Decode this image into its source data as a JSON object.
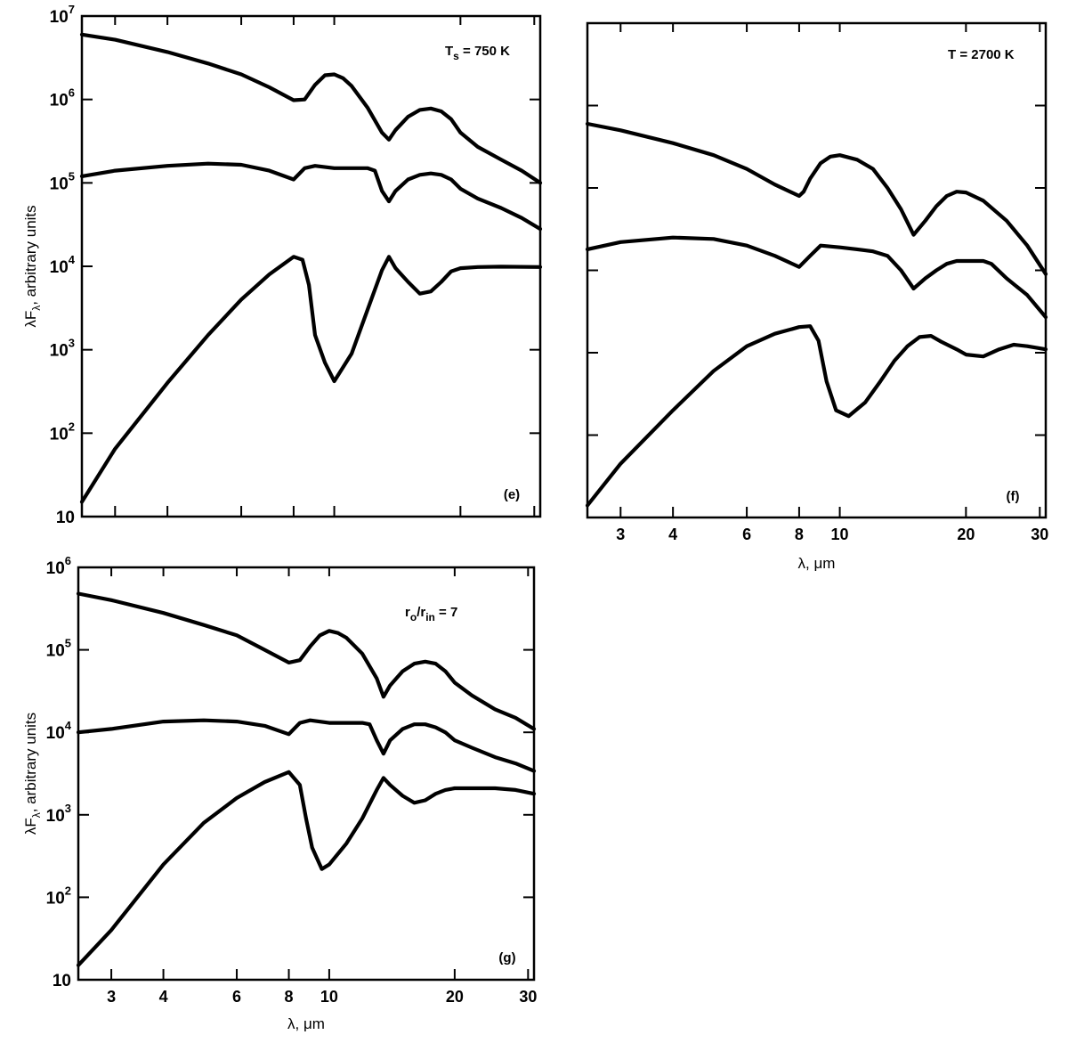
{
  "chart_data": [
    {
      "type": "line",
      "panel": "(e)",
      "annotation": {
        "main": "T",
        "sub": "s",
        "rest": " = 750 K"
      },
      "ylabel": {
        "pre": "λF",
        "sub": "λ",
        "post": ", arbitrary units"
      },
      "xlabel": "",
      "xscale": "log",
      "yscale": "log",
      "xlim": [
        2.5,
        31
      ],
      "ylim": [
        10,
        10000000
      ],
      "yticks": [
        {
          "v": 10,
          "base": "10",
          "exp": ""
        },
        {
          "v": 100,
          "base": "10",
          "exp": "2"
        },
        {
          "v": 1000,
          "base": "10",
          "exp": "3"
        },
        {
          "v": 10000,
          "base": "10",
          "exp": "4"
        },
        {
          "v": 100000,
          "base": "10",
          "exp": "5"
        },
        {
          "v": 1000000,
          "base": "10",
          "exp": "6"
        },
        {
          "v": 10000000,
          "base": "10",
          "exp": "7"
        }
      ],
      "xticks": [
        {
          "v": 3,
          "label": ""
        },
        {
          "v": 4,
          "label": ""
        },
        {
          "v": 6,
          "label": ""
        },
        {
          "v": 8,
          "label": ""
        },
        {
          "v": 10,
          "label": ""
        },
        {
          "v": 20,
          "label": ""
        },
        {
          "v": 30,
          "label": ""
        }
      ],
      "series": [
        {
          "x": [
            2.5,
            3,
            4,
            5,
            6,
            7,
            8,
            8.5,
            9,
            9.5,
            10,
            10.5,
            11,
            12,
            13,
            13.5,
            14,
            15,
            16,
            17,
            18,
            19,
            20,
            22,
            25,
            28,
            31
          ],
          "y": [
            6000000,
            5200000,
            3700000,
            2700000,
            2000000,
            1400000,
            980000,
            1000000,
            1500000,
            1950000,
            2000000,
            1800000,
            1450000,
            800000,
            400000,
            330000,
            430000,
            620000,
            750000,
            780000,
            720000,
            580000,
            400000,
            270000,
            190000,
            140000,
            100000
          ]
        },
        {
          "x": [
            2.5,
            3,
            4,
            5,
            6,
            7,
            8,
            8.5,
            9,
            10,
            11,
            12,
            12.5,
            13,
            13.5,
            14,
            15,
            16,
            17,
            18,
            19,
            20,
            22,
            25,
            28,
            31
          ],
          "y": [
            120000,
            140000,
            160000,
            170000,
            165000,
            140000,
            110000,
            150000,
            160000,
            150000,
            150000,
            150000,
            140000,
            80000,
            60000,
            80000,
            110000,
            125000,
            130000,
            125000,
            110000,
            85000,
            65000,
            50000,
            38000,
            28000
          ]
        },
        {
          "x": [
            2.5,
            3,
            4,
            5,
            6,
            7,
            8,
            8.4,
            8.7,
            9,
            9.5,
            10,
            11,
            12,
            13,
            13.5,
            14,
            15,
            16,
            17,
            18,
            19,
            20,
            22,
            25,
            31
          ],
          "y": [
            15,
            65,
            400,
            1500,
            4000,
            8000,
            13000,
            12000,
            6000,
            1500,
            700,
            420,
            900,
            3000,
            9000,
            13000,
            9500,
            6500,
            4700,
            5000,
            6500,
            8700,
            9500,
            9800,
            9900,
            9800
          ]
        }
      ]
    },
    {
      "type": "line",
      "panel": "(f)",
      "annotation": {
        "main": "T",
        "sub": "",
        "rest": " = 2700 K"
      },
      "xlabel": "λ, μm",
      "xscale": "log",
      "yscale": "log",
      "xlim": [
        2.5,
        31
      ],
      "ylim": [
        10,
        10000000
      ],
      "yticks": [
        {
          "v": 10,
          "base": "",
          "exp": ""
        },
        {
          "v": 100,
          "base": "",
          "exp": ""
        },
        {
          "v": 1000,
          "base": "",
          "exp": ""
        },
        {
          "v": 10000,
          "base": "",
          "exp": ""
        },
        {
          "v": 100000,
          "base": "",
          "exp": ""
        },
        {
          "v": 1000000,
          "base": "",
          "exp": ""
        },
        {
          "v": 10000000,
          "base": "",
          "exp": ""
        }
      ],
      "xticks": [
        {
          "v": 3,
          "label": "3"
        },
        {
          "v": 4,
          "label": "4"
        },
        {
          "v": 6,
          "label": "6"
        },
        {
          "v": 8,
          "label": "8"
        },
        {
          "v": 10,
          "label": "10"
        },
        {
          "v": 20,
          "label": "20"
        },
        {
          "v": 30,
          "label": "30"
        }
      ],
      "series": [
        {
          "x": [
            2.5,
            3,
            4,
            5,
            6,
            7,
            8,
            8.2,
            8.5,
            9,
            9.5,
            10,
            11,
            12,
            13,
            14,
            15,
            16,
            17,
            18,
            19,
            20,
            22,
            25,
            28,
            31
          ],
          "y": [
            600000,
            500000,
            350000,
            250000,
            170000,
            110000,
            80000,
            90000,
            130000,
            200000,
            240000,
            250000,
            220000,
            170000,
            100000,
            55000,
            27000,
            40000,
            60000,
            80000,
            90000,
            88000,
            70000,
            40000,
            20000,
            9000
          ]
        },
        {
          "x": [
            2.5,
            3,
            4,
            5,
            6,
            7,
            8,
            8.5,
            9,
            10,
            11,
            12,
            13,
            14,
            15,
            16,
            17,
            18,
            19,
            20,
            22,
            23,
            25,
            28,
            31
          ],
          "y": [
            18000,
            22000,
            25000,
            24000,
            20000,
            15000,
            11000,
            15000,
            20000,
            19000,
            18000,
            17000,
            15000,
            10000,
            6000,
            8000,
            10000,
            12000,
            13000,
            13000,
            13000,
            12000,
            8000,
            5000,
            2700
          ]
        },
        {
          "x": [
            2.5,
            3,
            4,
            5,
            6,
            7,
            8,
            8.5,
            8.9,
            9.3,
            9.8,
            10.5,
            11.5,
            12.5,
            13.5,
            14.5,
            15.5,
            16.5,
            17.5,
            19,
            20,
            22,
            24,
            26,
            28,
            31
          ],
          "y": [
            14,
            45,
            200,
            600,
            1200,
            1700,
            2050,
            2100,
            1400,
            450,
            200,
            170,
            250,
            450,
            800,
            1200,
            1550,
            1600,
            1350,
            1100,
            950,
            900,
            1100,
            1250,
            1200,
            1100
          ]
        }
      ]
    },
    {
      "type": "line",
      "panel": "(g)",
      "annotation": {
        "main": "r",
        "sub": "o",
        "mid": "/r",
        "sub2": "in",
        "rest": " = 7"
      },
      "ylabel": {
        "pre": "λF",
        "sub": "λ",
        "post": ", arbitrary units"
      },
      "xlabel": "λ, μm",
      "xscale": "log",
      "yscale": "log",
      "xlim": [
        2.5,
        31
      ],
      "ylim": [
        10,
        1000000
      ],
      "yticks": [
        {
          "v": 10,
          "base": "10",
          "exp": ""
        },
        {
          "v": 100,
          "base": "10",
          "exp": "2"
        },
        {
          "v": 1000,
          "base": "10",
          "exp": "3"
        },
        {
          "v": 10000,
          "base": "10",
          "exp": "4"
        },
        {
          "v": 100000,
          "base": "10",
          "exp": "5"
        },
        {
          "v": 1000000,
          "base": "10",
          "exp": "6"
        }
      ],
      "xticks": [
        {
          "v": 3,
          "label": "3"
        },
        {
          "v": 4,
          "label": "4"
        },
        {
          "v": 6,
          "label": "6"
        },
        {
          "v": 8,
          "label": "8"
        },
        {
          "v": 10,
          "label": "10"
        },
        {
          "v": 20,
          "label": "20"
        },
        {
          "v": 30,
          "label": "30"
        }
      ],
      "series": [
        {
          "x": [
            2.5,
            3,
            4,
            5,
            6,
            7,
            8,
            8.5,
            9,
            9.5,
            10,
            10.5,
            11,
            12,
            13,
            13.5,
            14,
            15,
            16,
            17,
            18,
            19,
            20,
            22,
            25,
            28,
            31
          ],
          "y": [
            480000,
            400000,
            280000,
            200000,
            150000,
            100000,
            70000,
            75000,
            110000,
            150000,
            170000,
            160000,
            140000,
            90000,
            45000,
            27000,
            37000,
            55000,
            68000,
            72000,
            68000,
            55000,
            40000,
            28000,
            19000,
            15000,
            11000
          ]
        },
        {
          "x": [
            2.5,
            3,
            4,
            5,
            6,
            7,
            8,
            8.5,
            9,
            10,
            11,
            12,
            12.5,
            13,
            13.5,
            14,
            15,
            16,
            17,
            18,
            19,
            20,
            22,
            25,
            28,
            31
          ],
          "y": [
            10000,
            11000,
            13500,
            14000,
            13500,
            12000,
            9500,
            13000,
            14000,
            13000,
            13000,
            13000,
            12500,
            8000,
            5500,
            8000,
            11000,
            12500,
            12500,
            11500,
            10000,
            8000,
            6500,
            5000,
            4200,
            3400
          ]
        },
        {
          "x": [
            2.5,
            3,
            4,
            5,
            6,
            7,
            8,
            8.5,
            8.8,
            9.1,
            9.6,
            10,
            11,
            12,
            13,
            13.5,
            14,
            15,
            16,
            17,
            18,
            19,
            20,
            22,
            25,
            28,
            31
          ],
          "y": [
            15,
            40,
            250,
            800,
            1600,
            2500,
            3300,
            2300,
            900,
            400,
            220,
            250,
            450,
            900,
            2000,
            2800,
            2300,
            1700,
            1400,
            1500,
            1800,
            2000,
            2100,
            2100,
            2100,
            2000,
            1800
          ]
        }
      ]
    }
  ]
}
